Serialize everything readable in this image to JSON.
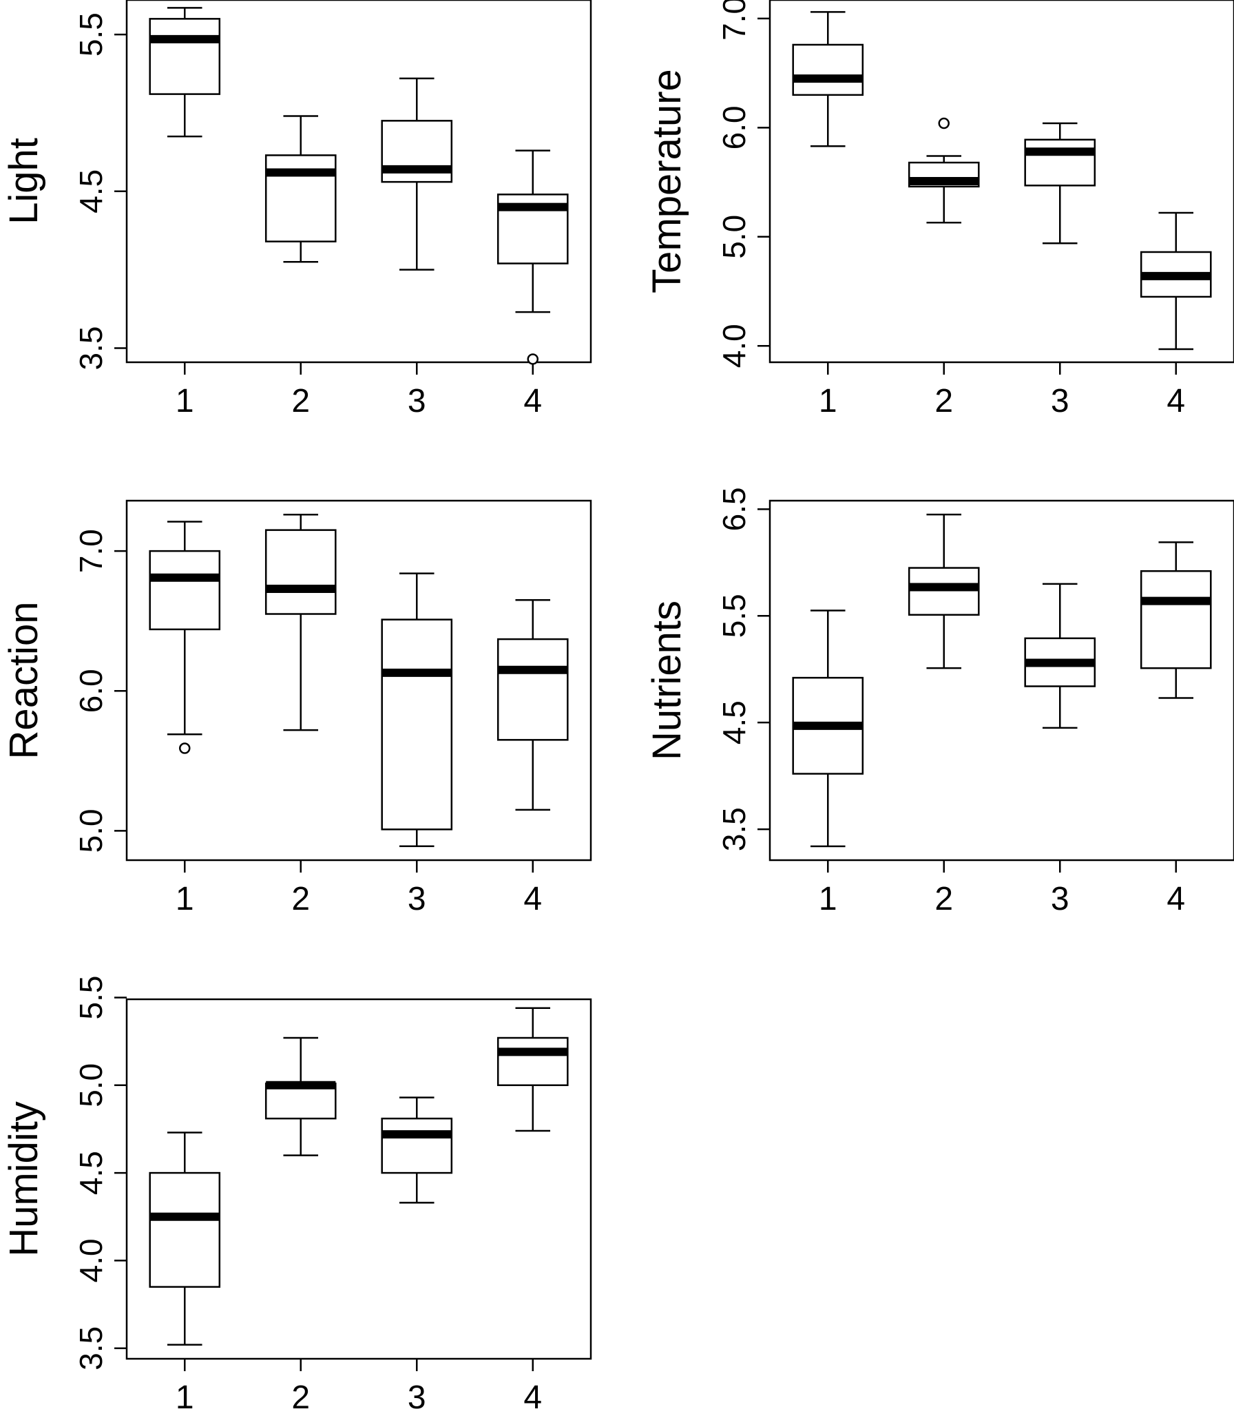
{
  "chart_data": [
    {
      "type": "box",
      "ylabel": "Light",
      "categories": [
        "1",
        "2",
        "3",
        "4"
      ],
      "yticks": [
        3.5,
        4.5,
        5.5
      ],
      "ytick_labels": [
        "3.5",
        "4.5",
        "5.5"
      ],
      "ylim": [
        3.41,
        5.72
      ],
      "boxes": [
        {
          "whisker_low": 4.85,
          "q1": 5.12,
          "median": 5.47,
          "q3": 5.6,
          "whisker_high": 5.67,
          "outliers": []
        },
        {
          "whisker_low": 4.05,
          "q1": 4.18,
          "median": 4.62,
          "q3": 4.73,
          "whisker_high": 4.98,
          "outliers": []
        },
        {
          "whisker_low": 4.0,
          "q1": 4.56,
          "median": 4.64,
          "q3": 4.95,
          "whisker_high": 5.22,
          "outliers": []
        },
        {
          "whisker_low": 3.73,
          "q1": 4.04,
          "median": 4.4,
          "q3": 4.48,
          "whisker_high": 4.76,
          "outliers": [
            3.43
          ]
        }
      ]
    },
    {
      "type": "box",
      "ylabel": "Temperature",
      "categories": [
        "1",
        "2",
        "3",
        "4"
      ],
      "yticks": [
        4.0,
        5.0,
        6.0,
        7.0
      ],
      "ytick_labels": [
        "4.0",
        "5.0",
        "6.0",
        "7.0"
      ],
      "ylim": [
        3.85,
        7.17
      ],
      "boxes": [
        {
          "whisker_low": 5.83,
          "q1": 6.3,
          "median": 6.45,
          "q3": 6.76,
          "whisker_high": 7.06,
          "outliers": []
        },
        {
          "whisker_low": 5.13,
          "q1": 5.46,
          "median": 5.51,
          "q3": 5.68,
          "whisker_high": 5.74,
          "outliers": [
            6.04
          ]
        },
        {
          "whisker_low": 4.94,
          "q1": 5.47,
          "median": 5.78,
          "q3": 5.89,
          "whisker_high": 6.04,
          "outliers": []
        },
        {
          "whisker_low": 3.97,
          "q1": 4.45,
          "median": 4.64,
          "q3": 4.86,
          "whisker_high": 5.22,
          "outliers": []
        }
      ]
    },
    {
      "type": "box",
      "ylabel": "Reaction",
      "categories": [
        "1",
        "2",
        "3",
        "4"
      ],
      "yticks": [
        5.0,
        6.0,
        7.0
      ],
      "ytick_labels": [
        "5.0",
        "6.0",
        "7.0"
      ],
      "ylim": [
        4.79,
        7.36
      ],
      "boxes": [
        {
          "whisker_low": 5.69,
          "q1": 6.44,
          "median": 6.81,
          "q3": 7.0,
          "whisker_high": 7.21,
          "outliers": [
            5.59
          ]
        },
        {
          "whisker_low": 5.72,
          "q1": 6.55,
          "median": 6.73,
          "q3": 7.15,
          "whisker_high": 7.26,
          "outliers": []
        },
        {
          "whisker_low": 4.89,
          "q1": 5.01,
          "median": 6.13,
          "q3": 6.51,
          "whisker_high": 6.84,
          "outliers": []
        },
        {
          "whisker_low": 5.15,
          "q1": 5.65,
          "median": 6.15,
          "q3": 6.37,
          "whisker_high": 6.65,
          "outliers": []
        }
      ]
    },
    {
      "type": "box",
      "ylabel": "Nutrients",
      "categories": [
        "1",
        "2",
        "3",
        "4"
      ],
      "yticks": [
        3.5,
        4.5,
        5.5,
        6.5
      ],
      "ytick_labels": [
        "3.5",
        "4.5",
        "5.5",
        "6.5"
      ],
      "ylim": [
        3.21,
        6.58
      ],
      "boxes": [
        {
          "whisker_low": 3.34,
          "q1": 4.02,
          "median": 4.47,
          "q3": 4.92,
          "whisker_high": 5.55,
          "outliers": []
        },
        {
          "whisker_low": 5.01,
          "q1": 5.51,
          "median": 5.77,
          "q3": 5.95,
          "whisker_high": 6.45,
          "outliers": []
        },
        {
          "whisker_low": 4.45,
          "q1": 4.84,
          "median": 5.06,
          "q3": 5.29,
          "whisker_high": 5.8,
          "outliers": []
        },
        {
          "whisker_low": 4.73,
          "q1": 5.01,
          "median": 5.64,
          "q3": 5.92,
          "whisker_high": 6.19,
          "outliers": []
        }
      ]
    },
    {
      "type": "box",
      "ylabel": "Humidity",
      "categories": [
        "1",
        "2",
        "3",
        "4"
      ],
      "yticks": [
        3.5,
        4.0,
        4.5,
        5.0,
        5.5
      ],
      "ytick_labels": [
        "3.5",
        "4.0",
        "4.5",
        "5.0",
        "5.5"
      ],
      "ylim": [
        3.44,
        5.49
      ],
      "boxes": [
        {
          "whisker_low": 3.52,
          "q1": 3.85,
          "median": 4.25,
          "q3": 4.5,
          "whisker_high": 4.73,
          "outliers": []
        },
        {
          "whisker_low": 4.6,
          "q1": 4.81,
          "median": 5.0,
          "q3": 5.01,
          "whisker_high": 5.27,
          "outliers": []
        },
        {
          "whisker_low": 4.33,
          "q1": 4.5,
          "median": 4.72,
          "q3": 4.81,
          "whisker_high": 4.93,
          "outliers": []
        },
        {
          "whisker_low": 4.74,
          "q1": 5.0,
          "median": 5.19,
          "q3": 5.27,
          "whisker_high": 5.44,
          "outliers": []
        }
      ]
    }
  ]
}
